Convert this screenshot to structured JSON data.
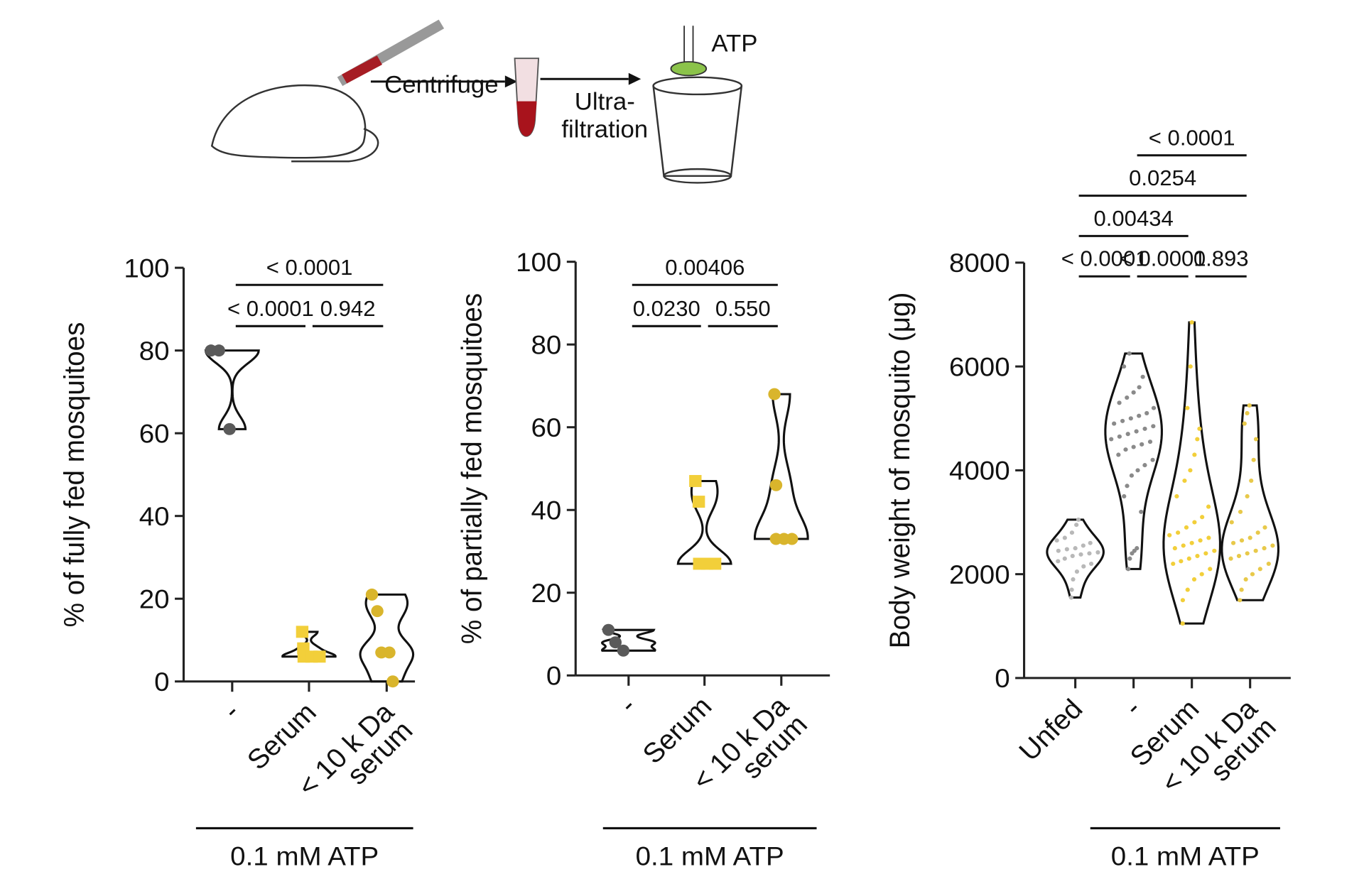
{
  "diagram": {
    "labels": [
      "Centrifuge",
      "Ultra-",
      "filtration",
      "ATP"
    ]
  },
  "chart_data": [
    {
      "type": "violin",
      "ylabel": "% of fully fed mosquitoes",
      "categories": [
        "-",
        "Serum",
        "< 10 k Da serum"
      ],
      "groups": [
        [
          80,
          80,
          61
        ],
        [
          12,
          8,
          6,
          6,
          6
        ],
        [
          21,
          17,
          7,
          7,
          0
        ]
      ],
      "colors": [
        "#5a5a5a",
        "#f2cf3a",
        "#d9b52c"
      ],
      "markers": [
        "circle",
        "square",
        "circle"
      ],
      "ylim": [
        0,
        100
      ],
      "yticks": [
        0,
        20,
        40,
        60,
        80,
        100
      ],
      "comparisons": [
        {
          "label": "< 0.0001",
          "groups": [
            0,
            1
          ]
        },
        {
          "label": "0.942",
          "groups": [
            1,
            2
          ]
        },
        {
          "label": "< 0.0001",
          "groups": [
            0,
            2
          ]
        }
      ],
      "group_label": "0.1 mM ATP"
    },
    {
      "type": "violin",
      "ylabel": "% of partially fed mosquitoes",
      "categories": [
        "-",
        "Serum",
        "< 10 k Da serum"
      ],
      "groups": [
        [
          11,
          8,
          6
        ],
        [
          47,
          42,
          27,
          27,
          27
        ],
        [
          68,
          46,
          33,
          33,
          33
        ]
      ],
      "colors": [
        "#5a5a5a",
        "#f2cf3a",
        "#d9b52c"
      ],
      "markers": [
        "circle",
        "square",
        "circle"
      ],
      "ylim": [
        0,
        100
      ],
      "yticks": [
        0,
        20,
        40,
        60,
        80,
        100
      ],
      "comparisons": [
        {
          "label": "0.0230",
          "groups": [
            0,
            1
          ]
        },
        {
          "label": "0.550",
          "groups": [
            1,
            2
          ]
        },
        {
          "label": "0.00406",
          "groups": [
            0,
            2
          ]
        }
      ],
      "group_label": "0.1 mM ATP"
    },
    {
      "type": "violin",
      "ylabel": "Body weight of mosquito (μg)",
      "categories": [
        "Unfed",
        "-",
        "Serum",
        "< 10 k Da serum"
      ],
      "groups": [
        [
          1550,
          1700,
          1900,
          2050,
          2150,
          2200,
          2250,
          2300,
          2350,
          2380,
          2400,
          2420,
          2450,
          2480,
          2500,
          2550,
          2600,
          2650,
          2700,
          2800,
          2950,
          3050
        ],
        [
          2100,
          2300,
          2400,
          2450,
          2500,
          3200,
          3500,
          3700,
          3900,
          4000,
          4100,
          4200,
          4300,
          4400,
          4450,
          4500,
          4550,
          4600,
          4650,
          4700,
          4750,
          4800,
          4850,
          4900,
          4950,
          5000,
          5050,
          5100,
          5200,
          5300,
          5400,
          5500,
          5600,
          5800,
          6000,
          6250
        ],
        [
          1050,
          1500,
          1700,
          1900,
          2000,
          2100,
          2200,
          2250,
          2300,
          2350,
          2400,
          2450,
          2500,
          2550,
          2600,
          2650,
          2700,
          2750,
          2800,
          2900,
          3000,
          3100,
          3300,
          3500,
          3800,
          4000,
          4300,
          4600,
          4800,
          5200,
          6000,
          6850
        ],
        [
          1500,
          1700,
          1900,
          2000,
          2100,
          2200,
          2300,
          2350,
          2400,
          2450,
          2500,
          2550,
          2600,
          2650,
          2700,
          2800,
          2900,
          3000,
          3200,
          3500,
          3800,
          4200,
          4600,
          4900,
          5100,
          5250
        ]
      ],
      "colors": [
        "#b8b8b8",
        "#8a8a8a",
        "#f2cf3a",
        "#e8c94a"
      ],
      "markers": [
        "circle",
        "circle",
        "circle",
        "circle"
      ],
      "ylim": [
        0,
        8000
      ],
      "yticks": [
        0,
        2000,
        4000,
        6000,
        8000
      ],
      "comparisons": [
        {
          "label": "< 0.0001",
          "groups": [
            0,
            1
          ]
        },
        {
          "label": "< 0.0001",
          "groups": [
            1,
            2
          ]
        },
        {
          "label": "0.00434",
          "groups": [
            0,
            2
          ]
        },
        {
          "label": "0.893",
          "groups": [
            2,
            3
          ]
        },
        {
          "label": "0.0254",
          "groups": [
            0,
            3
          ]
        },
        {
          "label": "< 0.0001",
          "groups": [
            1,
            3
          ]
        }
      ],
      "group_label": "0.1 mM ATP"
    }
  ]
}
